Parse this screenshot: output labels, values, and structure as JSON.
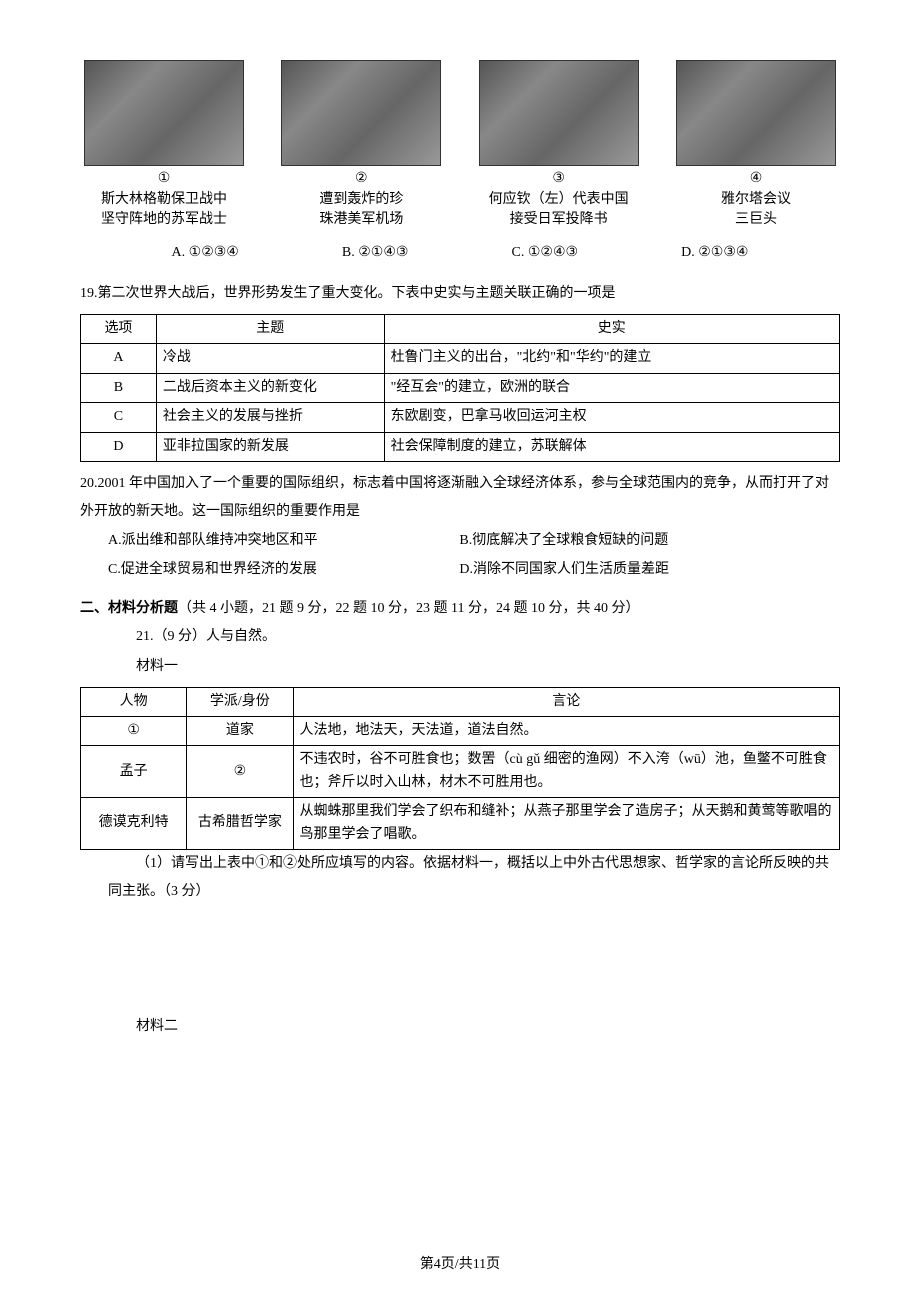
{
  "images": [
    {
      "num": "①",
      "caption_l1": "斯大林格勒保卫战中",
      "caption_l2": "坚守阵地的苏军战士"
    },
    {
      "num": "②",
      "caption_l1": "遭到轰炸的珍",
      "caption_l2": "珠港美军机场"
    },
    {
      "num": "③",
      "caption_l1": "何应钦（左）代表中国",
      "caption_l2": "接受日军投降书"
    },
    {
      "num": "④",
      "caption_l1": "雅尔塔会议",
      "caption_l2": "三巨头"
    }
  ],
  "q18_options": {
    "a": "A. ①②③④",
    "b": "B. ②①④③",
    "c": "C. ①②④③",
    "d": "D. ②①③④"
  },
  "q19": {
    "stem": "19.第二次世界大战后，世界形势发生了重大变化。下表中史实与主题关联正确的一项是",
    "headers": [
      "选项",
      "主题",
      "史实"
    ],
    "rows": [
      [
        "A",
        "冷战",
        "杜鲁门主义的出台，\"北约\"和\"华约\"的建立"
      ],
      [
        "B",
        "二战后资本主义的新变化",
        "\"经互会\"的建立，欧洲的联合"
      ],
      [
        "C",
        "社会主义的发展与挫折",
        "东欧剧变，巴拿马收回运河主权"
      ],
      [
        "D",
        "亚非拉国家的新发展",
        "社会保障制度的建立，苏联解体"
      ]
    ]
  },
  "q20": {
    "stem": "20.2001 年中国加入了一个重要的国际组织，标志着中国将逐渐融入全球经济体系，参与全球范围内的竞争，从而打开了对外开放的新天地。这一国际组织的重要作用是",
    "a": "A.派出维和部队维持冲突地区和平",
    "b": "B.彻底解决了全球粮食短缺的问题",
    "c": "C.促进全球贸易和世界经济的发展",
    "d": "D.消除不同国家人们生活质量差距"
  },
  "section2": {
    "title_bold": "二、材料分析题",
    "title_rest": "（共 4 小题，21 题 9 分，22 题 10 分，23 题 11 分，24 题 10 分，共 40 分）",
    "q21_head": "21.（9 分）人与自然。",
    "mat1_label": "材料一",
    "table_headers": [
      "人物",
      "学派/身份",
      "言论"
    ],
    "table_rows": [
      [
        "①",
        "道家",
        "人法地，地法天，天法道，道法自然。"
      ],
      [
        "孟子",
        "②",
        "不违农时，谷不可胜食也；数罟（cù gǔ 细密的渔网）不入洿（wū）池，鱼鳖不可胜食也；斧斤以时入山林，材木不可胜用也。"
      ],
      [
        "德谟克利特",
        "古希腊哲学家",
        "从蜘蛛那里我们学会了织布和缝补；从燕子那里学会了造房子；从天鹅和黄莺等歌唱的鸟那里学会了唱歌。"
      ]
    ],
    "q21_sub1": "（1）请写出上表中①和②处所应填写的内容。依据材料一，概括以上中外古代思想家、哲学家的言论所反映的共同主张。（3 分）",
    "mat2_label": "材料二"
  },
  "footer": "第4页/共11页"
}
